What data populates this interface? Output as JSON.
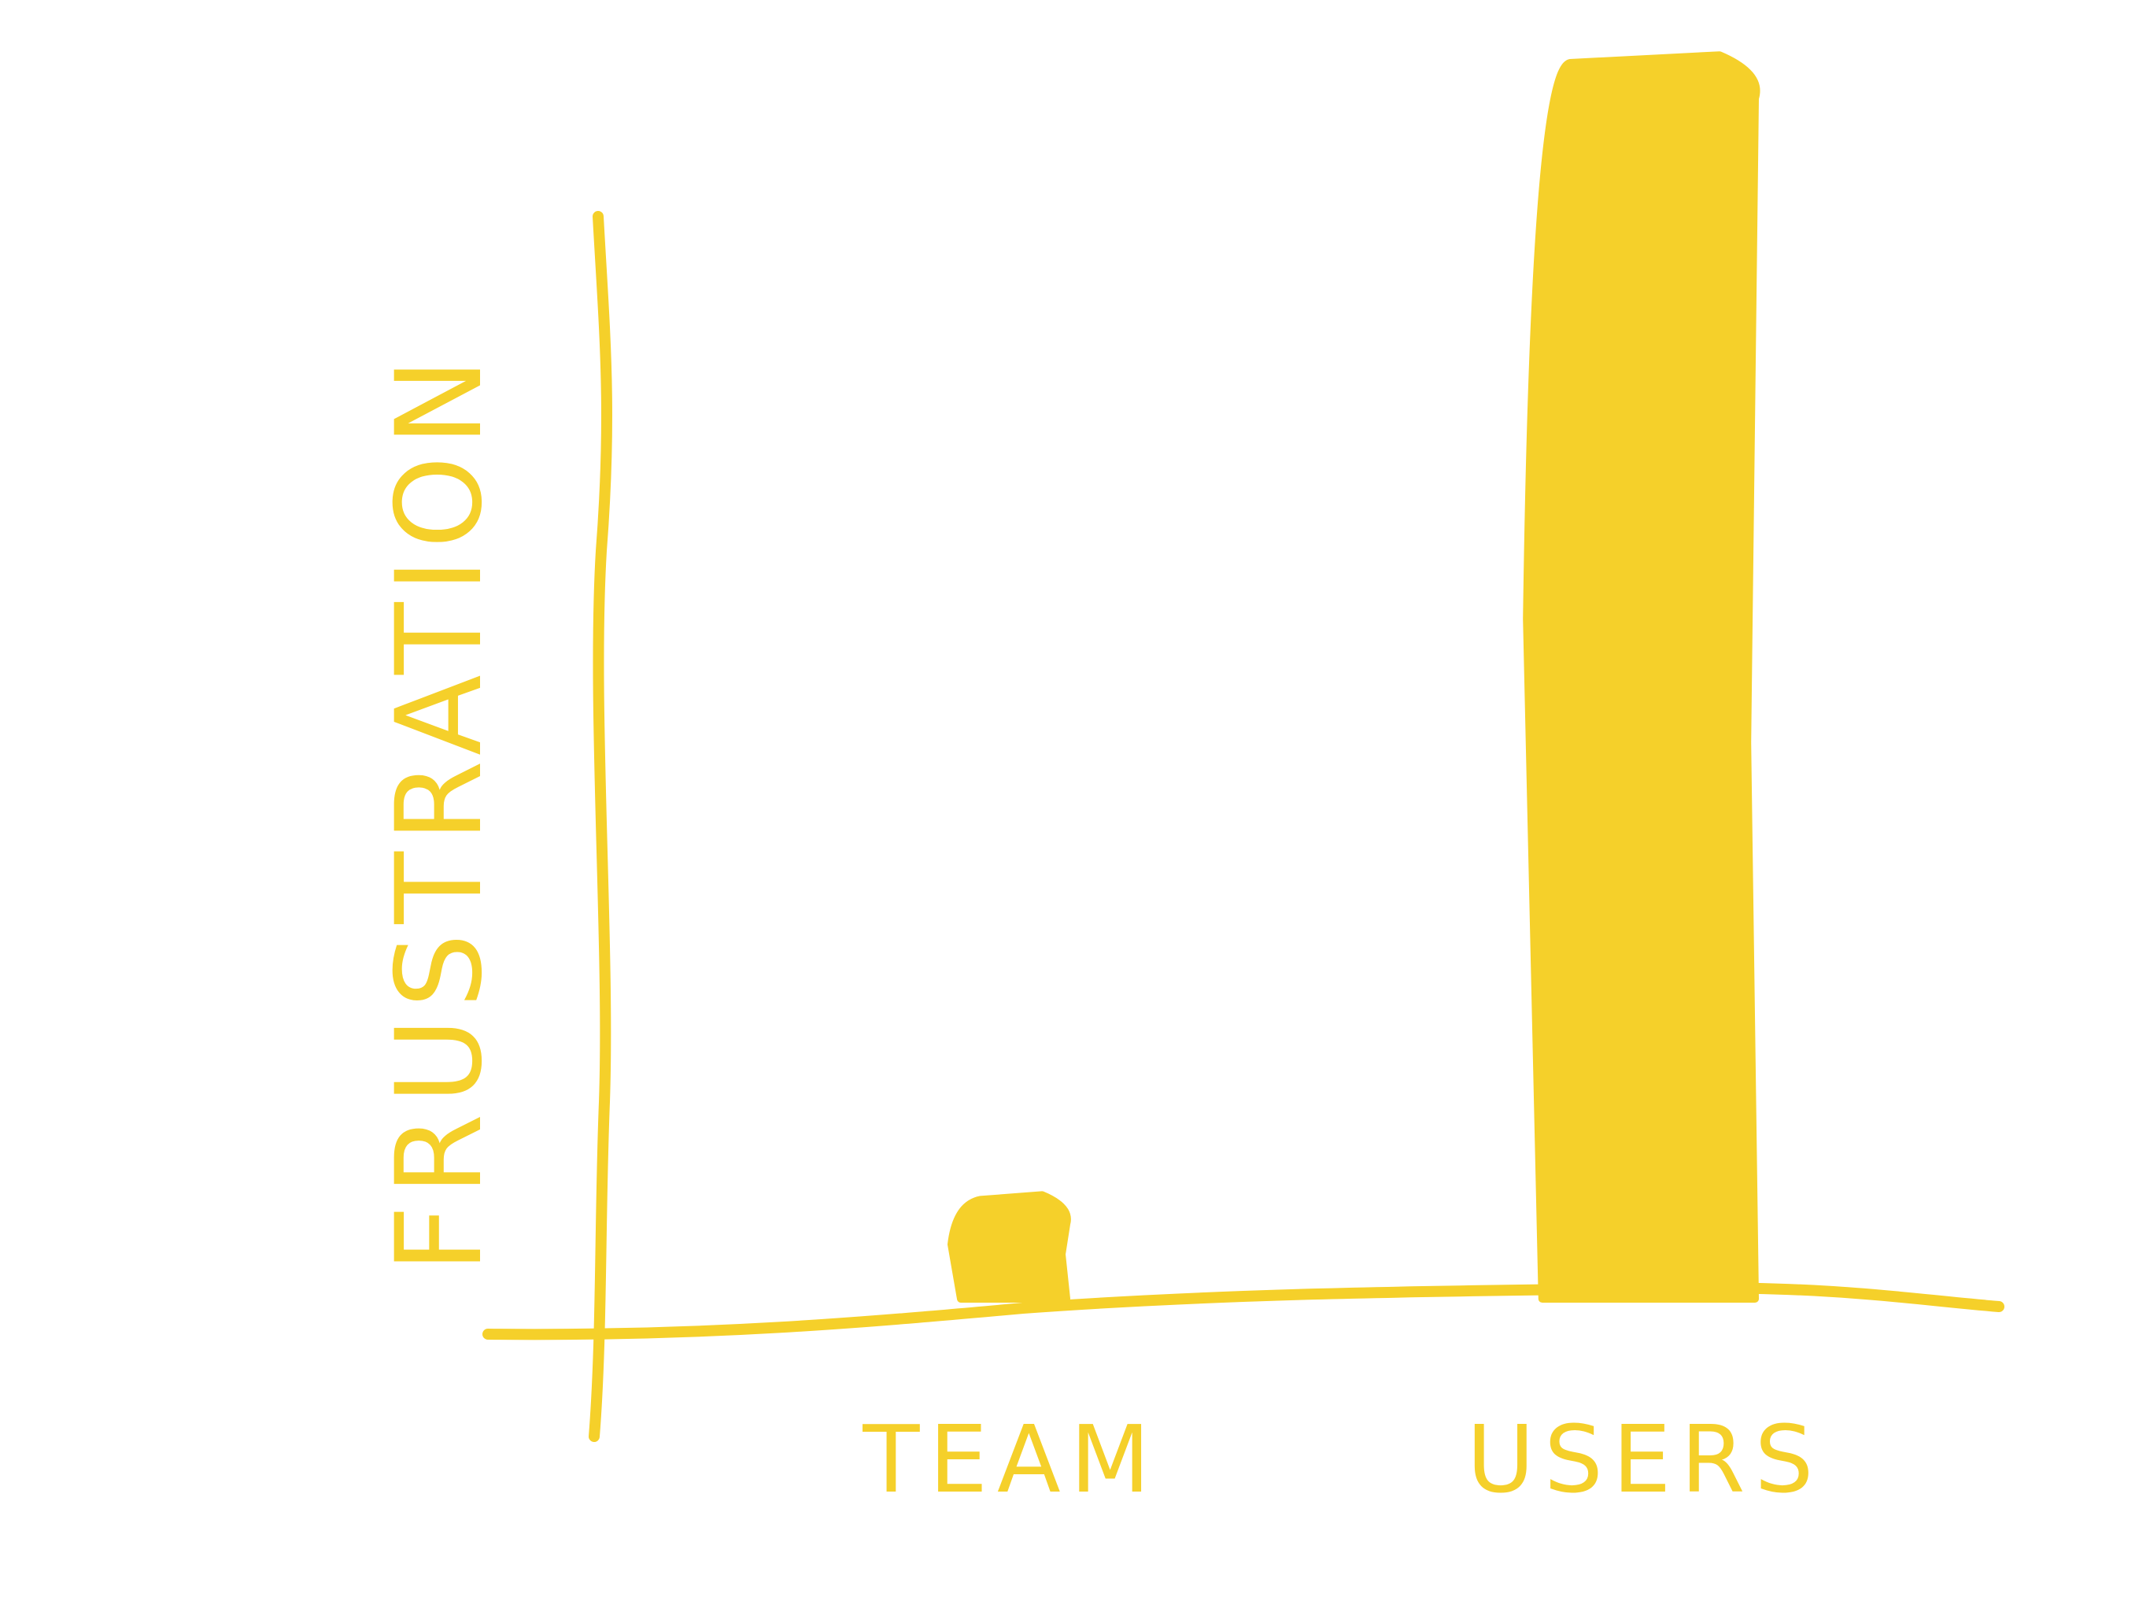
{
  "chart_data": {
    "type": "bar",
    "categories": [
      "TEAM",
      "USERS"
    ],
    "values": [
      8,
      100
    ],
    "title": "",
    "xlabel": "",
    "ylabel": "FRUSTRATION",
    "ylim": [
      0,
      100
    ],
    "grid": false,
    "legend": "none",
    "style": "hand-drawn"
  },
  "colors": {
    "accent": "#F5D02A",
    "background": "#FFFFFF"
  }
}
